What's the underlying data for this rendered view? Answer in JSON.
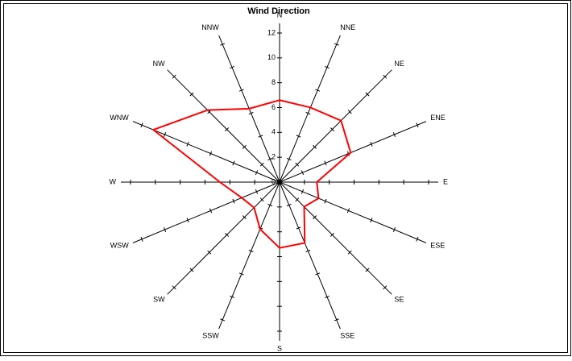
{
  "chart_data": {
    "type": "radar",
    "title": "Wind Direction",
    "categories": [
      "N",
      "NNE",
      "NE",
      "ENE",
      "E",
      "ESE",
      "SE",
      "SSE",
      "S",
      "SSW",
      "SW",
      "WSW",
      "W",
      "WNW",
      "NW",
      "NNW"
    ],
    "series": [
      {
        "color": "#ff0000",
        "values": [
          6.6,
          6.5,
          7.0,
          6.2,
          3.0,
          3.4,
          2.8,
          5.3,
          5.3,
          4.1,
          2.9,
          3.3,
          4.8,
          11.0,
          8.2,
          6.4
        ]
      }
    ],
    "ylim": [
      0,
      12
    ],
    "yticks": [
      0,
      2,
      4,
      6,
      8,
      10,
      12
    ]
  }
}
